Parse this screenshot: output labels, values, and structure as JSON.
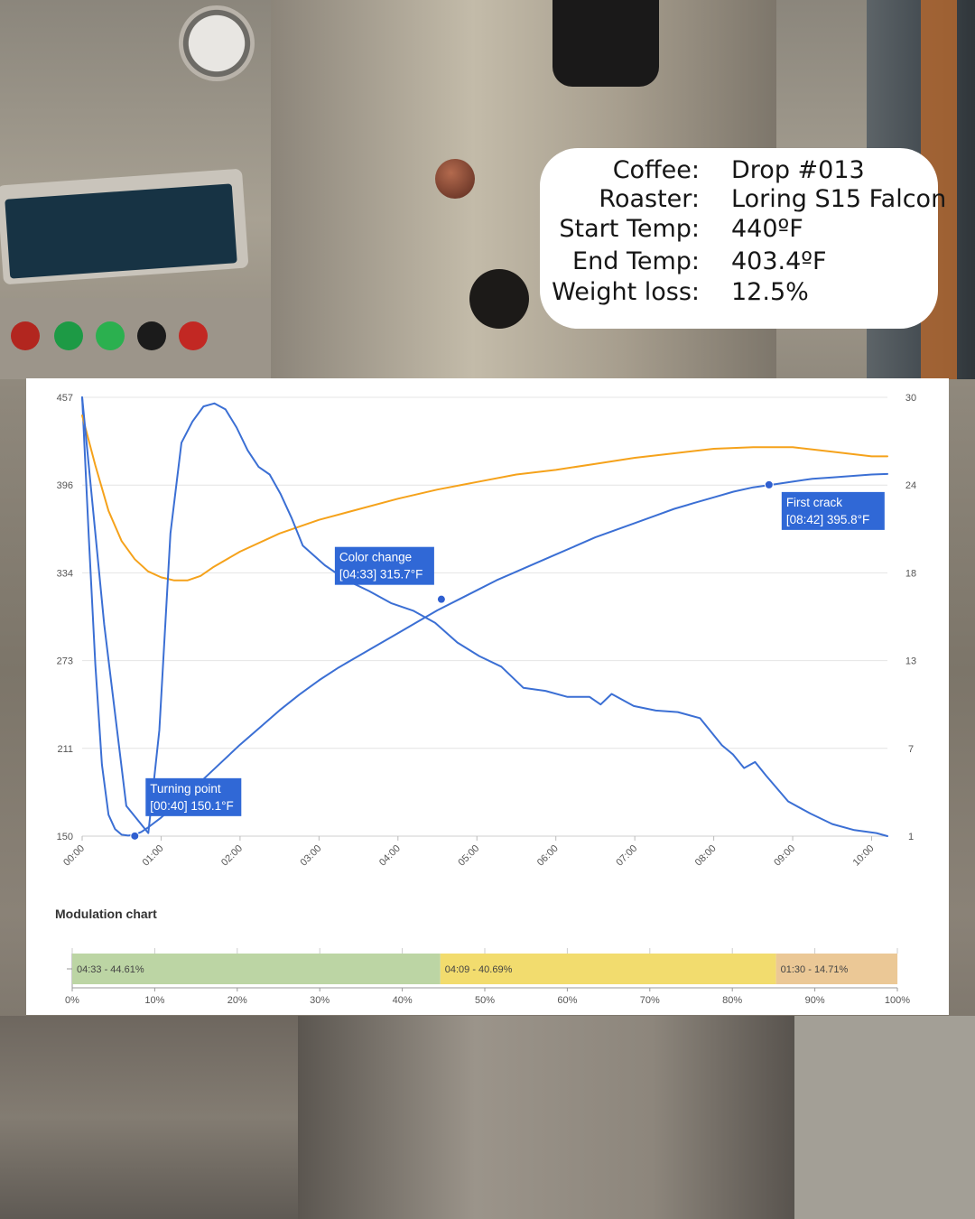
{
  "info": {
    "rows": [
      {
        "label": "Coffee:",
        "value": "Drop #013"
      },
      {
        "label": "Roaster:",
        "value": "Loring S15 Falcon"
      },
      {
        "label": "Start Temp:",
        "value": "440ºF"
      },
      {
        "label": "End Temp:",
        "value": "403.4ºF"
      },
      {
        "label": "Weight loss:",
        "value": "12.5%"
      }
    ]
  },
  "chart_data": [
    {
      "type": "line",
      "x_unit": "mm:ss",
      "x_ticks": [
        "00:00",
        "01:00",
        "02:00",
        "03:00",
        "04:00",
        "05:00",
        "06:00",
        "07:00",
        "08:00",
        "09:00",
        "10:00"
      ],
      "xlim_seconds": [
        0,
        612
      ],
      "y_left_ticks": [
        "457",
        "396",
        "334",
        "273",
        "211",
        "150"
      ],
      "ylim_left": [
        150,
        457
      ],
      "y_right_ticks": [
        "30",
        "24",
        "18",
        "13",
        "7",
        "1"
      ],
      "ylim_right": [
        1,
        30
      ],
      "series": [
        {
          "axis": "left",
          "color": "#3b6fd4",
          "points": [
            [
              0,
              457
            ],
            [
              10,
              360
            ],
            [
              20,
              270
            ],
            [
              30,
              200
            ],
            [
              40,
              165
            ],
            [
              50,
              155
            ],
            [
              60,
              151
            ],
            [
              70,
              150.4
            ],
            [
              80,
              151
            ],
            [
              90,
              153
            ],
            [
              100,
              156
            ],
            [
              120,
              163
            ],
            [
              150,
              175
            ],
            [
              180,
              188
            ],
            [
              210,
              201
            ],
            [
              240,
              214
            ],
            [
              270,
              226
            ],
            [
              300,
              238
            ],
            [
              330,
              249
            ],
            [
              360,
              259
            ],
            [
              390,
              268
            ],
            [
              420,
              276
            ],
            [
              450,
              284
            ],
            [
              480,
              292
            ],
            [
              510,
              300
            ],
            [
              540,
              308
            ],
            [
              573,
              315.7
            ],
            [
              600,
              322
            ],
            [
              630,
              329
            ],
            [
              660,
              335
            ],
            [
              690,
              341
            ],
            [
              720,
              347
            ],
            [
              750,
              353
            ],
            [
              780,
              359
            ],
            [
              810,
              364
            ],
            [
              840,
              369
            ],
            [
              870,
              374
            ],
            [
              900,
              379
            ],
            [
              930,
              383
            ],
            [
              960,
              387
            ],
            [
              990,
              391
            ],
            [
              1020,
              394
            ],
            [
              1050,
              396
            ],
            [
              1080,
              398
            ],
            [
              1110,
              400
            ],
            [
              1140,
              401
            ],
            [
              1170,
              402
            ],
            [
              1200,
              403
            ],
            [
              1224,
              403.4
            ]
          ],
          "x_scale": 0.5
        },
        {
          "axis": "right",
          "color": "#f5a21b",
          "points": [
            [
              0,
              28.8
            ],
            [
              10,
              25.5
            ],
            [
              20,
              22.5
            ],
            [
              30,
              20.5
            ],
            [
              40,
              19.3
            ],
            [
              50,
              18.5
            ],
            [
              60,
              18.1
            ],
            [
              70,
              17.9
            ],
            [
              80,
              17.9
            ],
            [
              90,
              18.2
            ],
            [
              100,
              18.8
            ],
            [
              120,
              19.8
            ],
            [
              150,
              21.0
            ],
            [
              180,
              21.9
            ],
            [
              210,
              22.6
            ],
            [
              240,
              23.3
            ],
            [
              270,
              23.9
            ],
            [
              300,
              24.4
            ],
            [
              330,
              24.9
            ],
            [
              360,
              25.2
            ],
            [
              390,
              25.6
            ],
            [
              420,
              26.0
            ],
            [
              450,
              26.3
            ],
            [
              480,
              26.6
            ],
            [
              510,
              26.7
            ],
            [
              540,
              26.7
            ],
            [
              570,
              26.4
            ],
            [
              600,
              26.1
            ],
            [
              612,
              26.1
            ]
          ]
        },
        {
          "axis": "right",
          "color": "#3b6fd4",
          "points": [
            [
              0,
              30
            ],
            [
              20,
              15
            ],
            [
              40,
              3
            ],
            [
              60,
              1.2
            ],
            [
              70,
              8
            ],
            [
              80,
              21
            ],
            [
              90,
              27
            ],
            [
              100,
              28.4
            ],
            [
              110,
              29.4
            ],
            [
              120,
              29.6
            ],
            [
              130,
              29.2
            ],
            [
              140,
              28
            ],
            [
              150,
              26.5
            ],
            [
              160,
              25.4
            ],
            [
              170,
              24.9
            ],
            [
              180,
              23.6
            ],
            [
              190,
              22.0
            ],
            [
              200,
              20.2
            ],
            [
              220,
              18.9
            ],
            [
              240,
              17.9
            ],
            [
              260,
              17.2
            ],
            [
              280,
              16.4
            ],
            [
              300,
              15.9
            ],
            [
              320,
              15.1
            ],
            [
              340,
              13.8
            ],
            [
              360,
              12.9
            ],
            [
              380,
              12.2
            ],
            [
              400,
              10.8
            ],
            [
              420,
              10.6
            ],
            [
              440,
              10.2
            ],
            [
              460,
              10.2
            ],
            [
              470,
              9.7
            ],
            [
              480,
              10.4
            ],
            [
              500,
              9.6
            ],
            [
              520,
              9.3
            ],
            [
              540,
              9.2
            ],
            [
              560,
              8.8
            ],
            [
              580,
              7.0
            ],
            [
              590,
              6.4
            ],
            [
              600,
              5.5
            ],
            [
              610,
              5.9
            ],
            [
              620,
              5.0
            ],
            [
              640,
              3.3
            ],
            [
              660,
              2.5
            ],
            [
              680,
              1.8
            ],
            [
              700,
              1.4
            ],
            [
              720,
              1.2
            ],
            [
              730,
              1.0
            ]
          ],
          "x_scale": 0.8383561644
        }
      ],
      "annotations": [
        {
          "label": "Turning point",
          "value": "[00:40] 150.1°F",
          "t": 40,
          "y": 150.1
        },
        {
          "label": "Color change",
          "value": "[04:33] 315.7°F",
          "t": 273,
          "y": 315.7
        },
        {
          "label": "First crack",
          "value": "[08:42] 395.8°F",
          "t": 522,
          "y": 395.8
        }
      ]
    },
    {
      "type": "bar",
      "title": "Modulation chart",
      "orientation": "horizontal-stacked",
      "x_ticks": [
        "0%",
        "10%",
        "20%",
        "30%",
        "40%",
        "50%",
        "60%",
        "70%",
        "80%",
        "90%",
        "100%"
      ],
      "segments": [
        {
          "label": "04:33 - 44.61%",
          "value": 44.61,
          "color": "#bcd5a4"
        },
        {
          "label": "04:09 - 40.69%",
          "value": 40.69,
          "color": "#f2dc6e"
        },
        {
          "label": "01:30 - 14.71%",
          "value": 14.71,
          "color": "#ebc896"
        }
      ]
    }
  ]
}
